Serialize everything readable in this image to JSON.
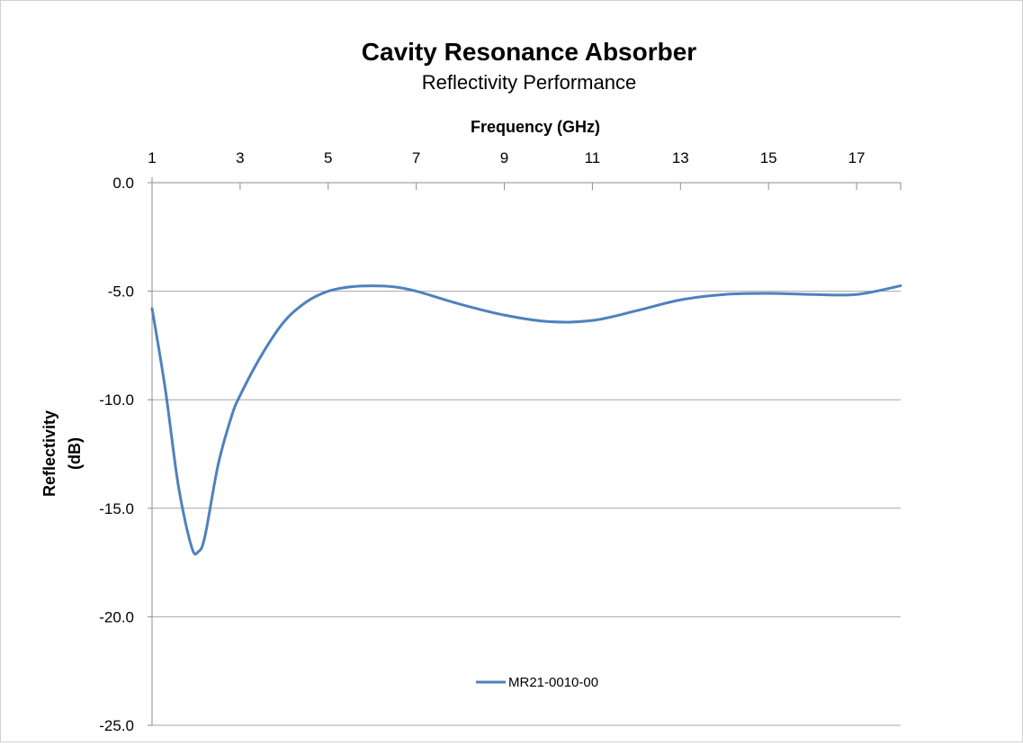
{
  "chart_data": {
    "type": "line",
    "title": "Cavity Resonance Absorber",
    "subtitle": "Reflectivity Performance",
    "xlabel": "Frequency (GHz)",
    "ylabel_lines": [
      "Reflectivity",
      "(dB)"
    ],
    "xlim": [
      1,
      18
    ],
    "ylim": [
      -25,
      0
    ],
    "x_ticks": [
      1,
      3,
      5,
      7,
      9,
      11,
      13,
      15,
      17
    ],
    "x_tick_labels": [
      "1",
      "3",
      "5",
      "7",
      "9",
      "11",
      "13",
      "15",
      "17"
    ],
    "y_ticks": [
      0,
      -5,
      -10,
      -15,
      -20,
      -25
    ],
    "y_tick_labels": [
      "0.0",
      "-5.0",
      "-10.0",
      "-15.0",
      "-20.0",
      "-25.0"
    ],
    "x_axis_position": "top",
    "grid": "horizontal",
    "legend_position": "bottom-center",
    "series": [
      {
        "name": "MR21-0010-00",
        "color": "#4f81bd",
        "x": [
          1,
          1.3,
          1.6,
          1.9,
          2.05,
          2.2,
          2.5,
          2.8,
          3.0,
          3.5,
          4.0,
          4.5,
          5.0,
          5.5,
          6.0,
          6.5,
          7.0,
          8.0,
          9.0,
          10.0,
          11.0,
          12.0,
          13.0,
          14.0,
          15.0,
          16.0,
          17.0,
          18.0
        ],
        "y": [
          -5.8,
          -9.5,
          -14.0,
          -16.8,
          -17.0,
          -16.3,
          -13.0,
          -10.8,
          -9.8,
          -7.9,
          -6.4,
          -5.5,
          -5.0,
          -4.8,
          -4.75,
          -4.8,
          -5.0,
          -5.6,
          -6.1,
          -6.4,
          -6.35,
          -5.9,
          -5.4,
          -5.15,
          -5.1,
          -5.15,
          -5.15,
          -4.75
        ]
      }
    ]
  }
}
